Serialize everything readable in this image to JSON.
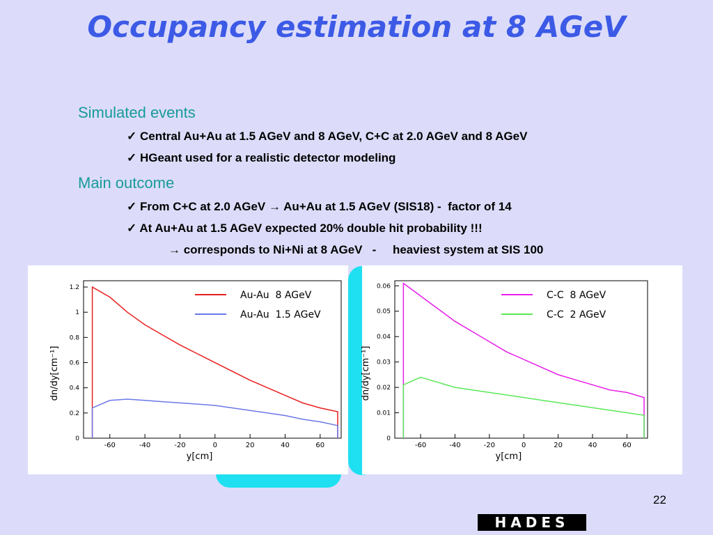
{
  "title": "Occupancy estimation at 8 AGeV",
  "sections": [
    {
      "heading": "Simulated events",
      "items": [
        "✓ Central Au+Au at 1.5 AGeV and 8 AGeV, C+C at 2.0 AGeV and 8 AGeV",
        "✓ HGeant used for a realistic detector modeling"
      ]
    },
    {
      "heading": "Main outcome",
      "items": [
        "✓ From C+C at 2.0 AGeV → Au+Au at 1.5 AGeV (SIS18) -  factor of 14",
        "✓ At Au+Au at 1.5 AGeV expected 20% double hit probability !!!",
        "→ corresponds to Ni+Ni at 8 AGeV   -     heaviest system at SIS 100"
      ]
    }
  ],
  "chart_data": [
    {
      "type": "line",
      "xlabel": "y[cm]",
      "ylabel": "dn/dy[cm⁻¹]",
      "x": [
        -70,
        -70,
        -60,
        -50,
        -40,
        -30,
        -20,
        -10,
        0,
        10,
        20,
        30,
        40,
        50,
        60,
        70,
        70
      ],
      "series": [
        {
          "name": "Au-Au  8 AGeV",
          "color": "#e8201e",
          "values": [
            0,
            1.2,
            1.12,
            1.0,
            0.9,
            0.82,
            0.74,
            0.67,
            0.6,
            0.53,
            0.46,
            0.4,
            0.34,
            0.28,
            0.24,
            0.21,
            0
          ]
        },
        {
          "name": "Au-Au  1.5 AGeV",
          "color": "#6a78e8",
          "values": [
            0,
            0.24,
            0.3,
            0.31,
            0.3,
            0.29,
            0.28,
            0.27,
            0.26,
            0.24,
            0.22,
            0.2,
            0.18,
            0.15,
            0.13,
            0.1,
            0
          ]
        }
      ],
      "xlim": [
        -75,
        72
      ],
      "ylim": [
        0,
        1.25
      ],
      "xticks": [
        -60,
        -40,
        -20,
        0,
        20,
        40,
        60
      ],
      "yticks": [
        0,
        0.2,
        0.4,
        0.6,
        0.8,
        1,
        1.2
      ],
      "legend": "upper right"
    },
    {
      "type": "line",
      "xlabel": "y[cm]",
      "ylabel": "dn/dy[cm⁻¹]",
      "x": [
        -70,
        -70,
        -60,
        -50,
        -40,
        -30,
        -20,
        -10,
        0,
        10,
        20,
        30,
        40,
        50,
        60,
        70,
        70
      ],
      "series": [
        {
          "name": "C-C  8 AGeV",
          "color": "#e81ee8",
          "values": [
            0,
            0.061,
            0.056,
            0.051,
            0.046,
            0.042,
            0.038,
            0.034,
            0.031,
            0.028,
            0.025,
            0.023,
            0.021,
            0.019,
            0.018,
            0.016,
            0
          ]
        },
        {
          "name": "C-C  2 AGeV",
          "color": "#5ae85a",
          "values": [
            0,
            0.021,
            0.024,
            0.022,
            0.02,
            0.019,
            0.018,
            0.017,
            0.016,
            0.015,
            0.014,
            0.013,
            0.012,
            0.011,
            0.01,
            0.009,
            0
          ]
        }
      ],
      "xlim": [
        -75,
        72
      ],
      "ylim": [
        0,
        0.062
      ],
      "xticks": [
        -60,
        -40,
        -20,
        0,
        20,
        40,
        60
      ],
      "yticks": [
        0,
        0.01,
        0.02,
        0.03,
        0.04,
        0.05,
        0.06
      ],
      "legend": "upper right"
    }
  ],
  "logo": "HADES",
  "page_number": "22"
}
